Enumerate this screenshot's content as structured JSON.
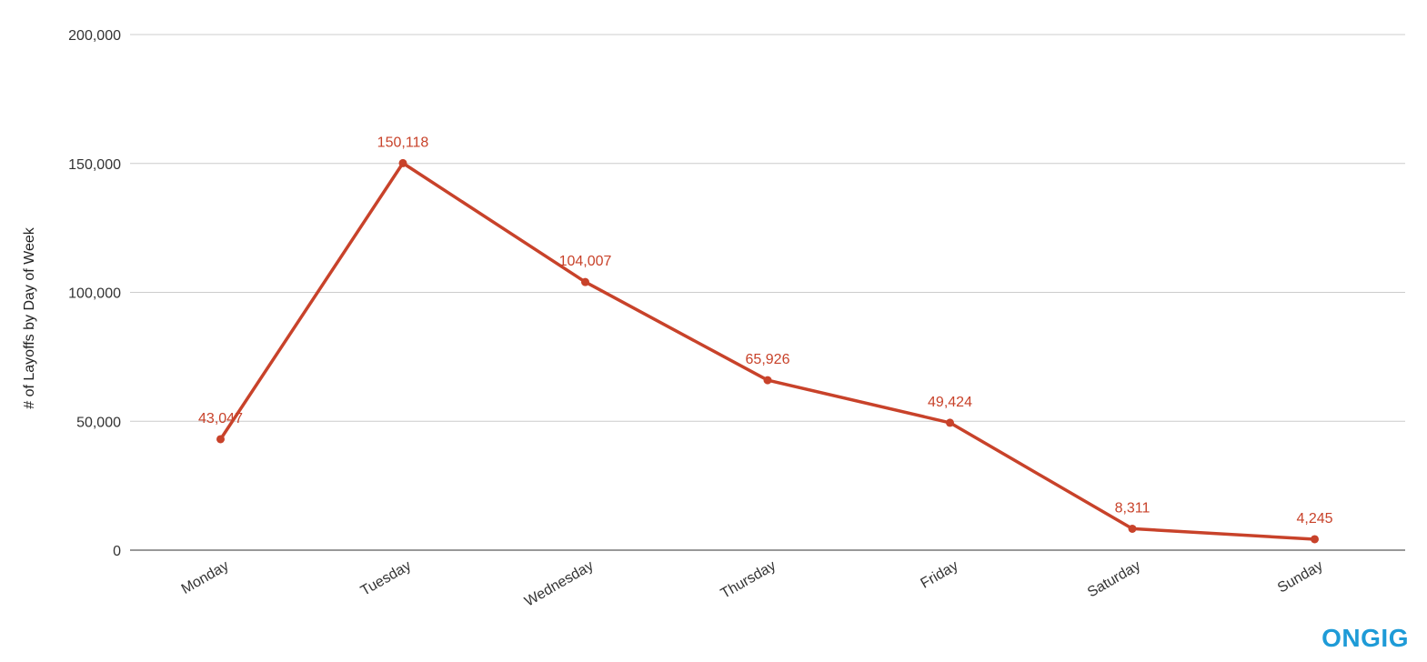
{
  "chart_data": {
    "type": "line",
    "categories": [
      "Monday",
      "Tuesday",
      "Wednesday",
      "Thursday",
      "Friday",
      "Saturday",
      "Sunday"
    ],
    "series": [
      {
        "values": [
          43047,
          150118,
          104007,
          65926,
          49424,
          8311,
          4245
        ],
        "data_labels": [
          "43,047",
          "150,118",
          "104,007",
          "65,926",
          "49,424",
          "8,311",
          "4,245"
        ],
        "color": "#C8422A"
      }
    ],
    "ylabel": "# of Layoffs by Day of Week",
    "xlabel": "",
    "ylim": [
      0,
      200000
    ],
    "y_ticks": [
      0,
      50000,
      100000,
      150000,
      200000
    ],
    "y_tick_labels": [
      "0",
      "50,000",
      "100,000",
      "150,000",
      "200,000"
    ],
    "grid": true,
    "legend": "none",
    "x_tick_rotation": "angled"
  },
  "branding": {
    "logo_text": "ONGIG",
    "logo_color": "#1E9BD7"
  }
}
